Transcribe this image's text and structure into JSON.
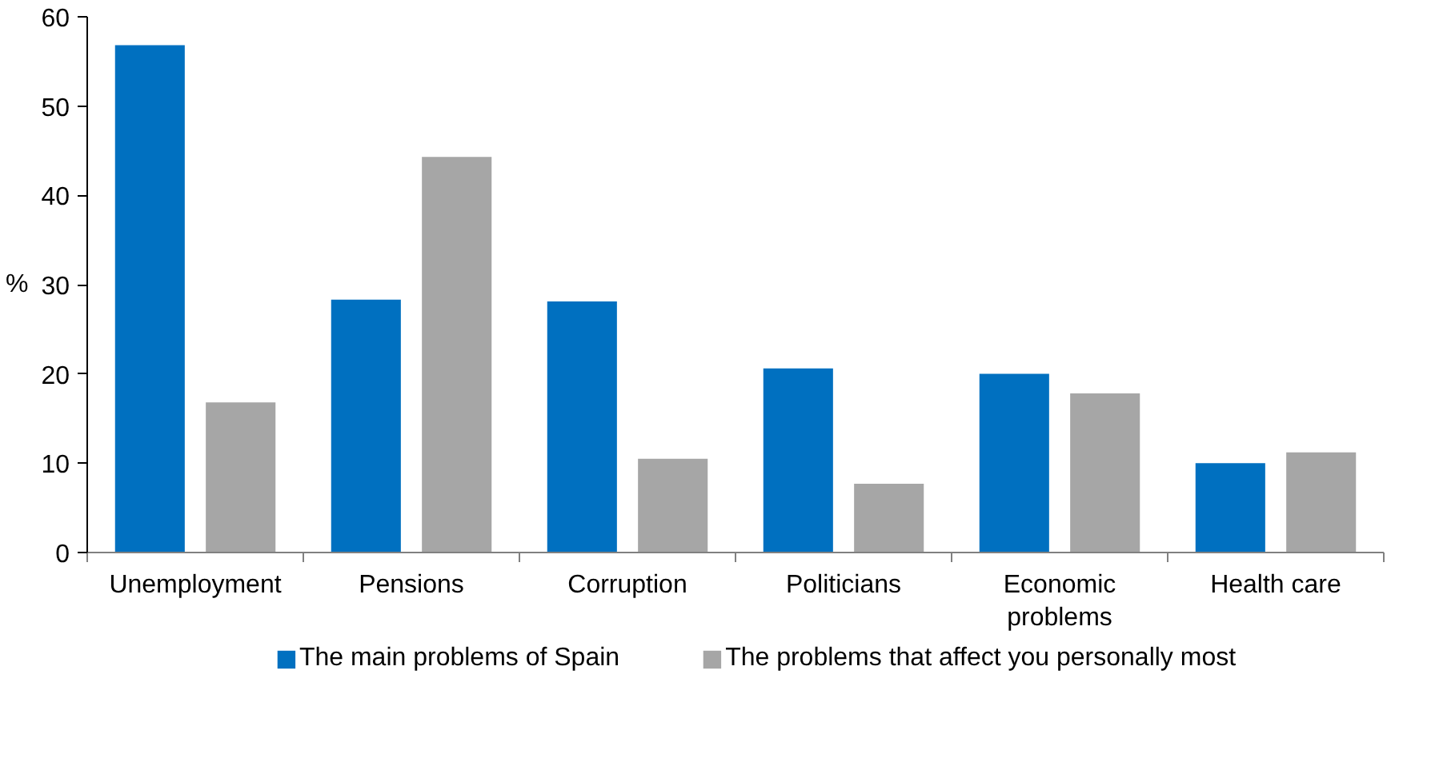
{
  "chart_data": {
    "type": "bar",
    "ylabel": "%",
    "categories": [
      "Unemployment",
      "Pensions",
      "Corruption",
      "Politicians",
      "Economic problems",
      "Health care"
    ],
    "series": [
      {
        "name": "The main problems of Spain",
        "color": "#0070c0",
        "values": [
          56.9,
          28.4,
          28.2,
          20.7,
          20.1,
          10.1
        ]
      },
      {
        "name": "The problems that affect you personally most",
        "color": "#a6a6a6",
        "values": [
          16.9,
          44.4,
          10.6,
          7.8,
          17.9,
          11.3
        ]
      }
    ],
    "ylim": [
      0,
      60
    ],
    "yticks": [
      0,
      10,
      20,
      30,
      40,
      50,
      60
    ],
    "grid": false,
    "legend": "bottom"
  }
}
